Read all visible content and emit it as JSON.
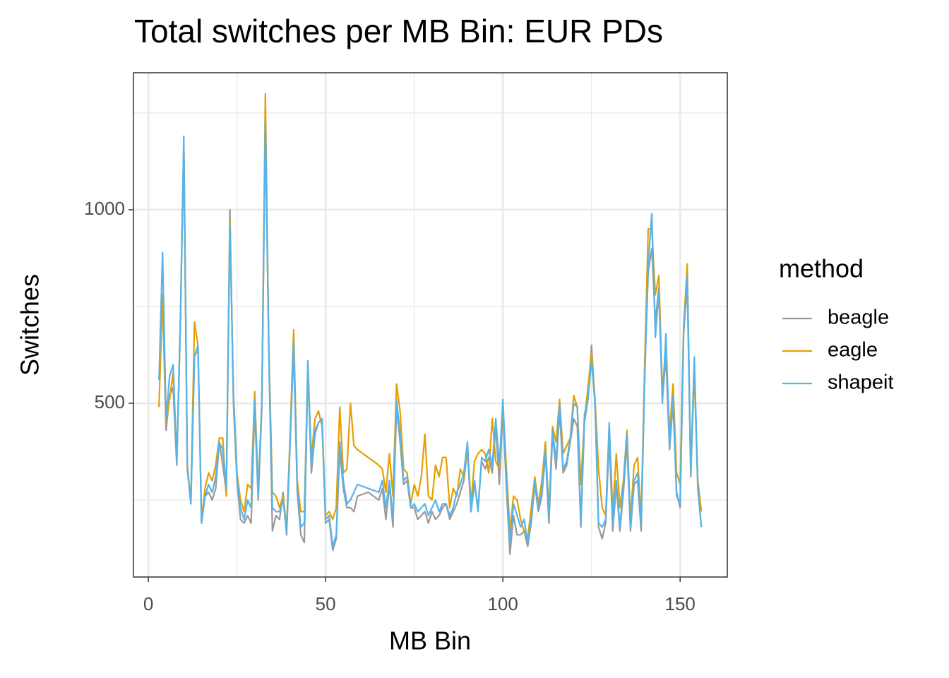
{
  "chart_data": {
    "type": "line",
    "title": "Total switches per MB Bin: EUR PDs",
    "x_label": "MB Bin",
    "y_label": "Switches",
    "legend_title": "method",
    "legend_position": "right",
    "grid": true,
    "xlim": [
      -4.2,
      163.3
    ],
    "xticks": [
      0,
      50,
      100,
      150
    ],
    "ylim": [
      51,
      1354
    ],
    "yticks": [
      500,
      1000
    ],
    "x": [
      3,
      4,
      5,
      6,
      7,
      8,
      9,
      10,
      11,
      12,
      13,
      14,
      15,
      16,
      17,
      18,
      19,
      20,
      21,
      22,
      23,
      24,
      25,
      26,
      27,
      28,
      29,
      30,
      31,
      32,
      33,
      34,
      35,
      36,
      37,
      38,
      39,
      40,
      41,
      42,
      43,
      44,
      45,
      46,
      47,
      48,
      49,
      50,
      51,
      52,
      53,
      54,
      55,
      56,
      57,
      58,
      59,
      62,
      65,
      66,
      67,
      68,
      69,
      70,
      71,
      72,
      73,
      74,
      75,
      76,
      77,
      78,
      79,
      80,
      81,
      82,
      83,
      84,
      85,
      86,
      87,
      88,
      89,
      90,
      91,
      92,
      93,
      94,
      95,
      96,
      97,
      98,
      99,
      100,
      101,
      102,
      103,
      104,
      105,
      106,
      107,
      108,
      109,
      110,
      111,
      112,
      113,
      114,
      115,
      116,
      117,
      118,
      119,
      120,
      121,
      122,
      123,
      124,
      125,
      126,
      127,
      128,
      129,
      130,
      131,
      132,
      133,
      134,
      135,
      136,
      137,
      138,
      139,
      140,
      141,
      142,
      143,
      144,
      145,
      146,
      147,
      148,
      149,
      150,
      151,
      152,
      153,
      154,
      155,
      156
    ],
    "series": [
      {
        "name": "beagle",
        "color": "#999999",
        "values": [
          560,
          770,
          430,
          520,
          540,
          340,
          690,
          1170,
          330,
          240,
          620,
          640,
          190,
          260,
          270,
          250,
          280,
          400,
          340,
          270,
          1000,
          500,
          300,
          200,
          190,
          210,
          190,
          490,
          250,
          490,
          1230,
          620,
          170,
          210,
          200,
          270,
          160,
          400,
          640,
          270,
          160,
          140,
          590,
          320,
          420,
          450,
          460,
          190,
          200,
          120,
          150,
          380,
          280,
          230,
          230,
          220,
          260,
          270,
          250,
          280,
          200,
          290,
          180,
          490,
          400,
          290,
          300,
          230,
          230,
          200,
          210,
          220,
          190,
          220,
          200,
          210,
          230,
          240,
          200,
          220,
          240,
          270,
          300,
          380,
          220,
          290,
          230,
          350,
          330,
          360,
          320,
          440,
          290,
          480,
          280,
          110,
          210,
          160,
          160,
          170,
          130,
          190,
          290,
          220,
          260,
          370,
          190,
          420,
          330,
          480,
          320,
          340,
          400,
          460,
          440,
          180,
          450,
          510,
          650,
          500,
          180,
          150,
          190,
          410,
          170,
          290,
          170,
          270,
          400,
          170,
          290,
          300,
          170,
          570,
          840,
          900,
          710,
          800,
          510,
          620,
          380,
          500,
          270,
          230,
          680,
          810,
          310,
          590,
          280,
          180
        ]
      },
      {
        "name": "eagle",
        "color": "#E69F00",
        "values": [
          490,
          780,
          450,
          510,
          580,
          350,
          700,
          1170,
          330,
          250,
          710,
          650,
          200,
          280,
          320,
          300,
          340,
          410,
          410,
          260,
          970,
          530,
          320,
          250,
          220,
          290,
          280,
          530,
          280,
          500,
          1300,
          640,
          270,
          260,
          230,
          260,
          180,
          420,
          690,
          300,
          220,
          220,
          590,
          360,
          460,
          480,
          440,
          210,
          220,
          200,
          230,
          490,
          320,
          330,
          500,
          390,
          380,
          360,
          340,
          330,
          270,
          370,
          260,
          550,
          480,
          330,
          320,
          240,
          290,
          260,
          310,
          420,
          260,
          250,
          340,
          310,
          360,
          360,
          230,
          280,
          260,
          330,
          310,
          390,
          240,
          350,
          370,
          380,
          370,
          320,
          460,
          350,
          330,
          500,
          330,
          170,
          260,
          250,
          200,
          170,
          150,
          230,
          310,
          240,
          300,
          400,
          220,
          440,
          400,
          510,
          370,
          390,
          410,
          520,
          490,
          290,
          460,
          540,
          630,
          510,
          330,
          230,
          210,
          440,
          220,
          370,
          230,
          300,
          430,
          200,
          340,
          360,
          200,
          600,
          950,
          950,
          780,
          830,
          530,
          650,
          420,
          550,
          320,
          290,
          700,
          860,
          330,
          580,
          300,
          220
        ]
      },
      {
        "name": "shapeit",
        "color": "#56B4E9",
        "values": [
          560,
          890,
          460,
          570,
          600,
          350,
          700,
          1190,
          340,
          240,
          620,
          650,
          190,
          260,
          290,
          270,
          310,
          400,
          380,
          280,
          960,
          520,
          310,
          230,
          200,
          250,
          230,
          510,
          260,
          490,
          1230,
          620,
          230,
          220,
          220,
          250,
          170,
          400,
          660,
          280,
          180,
          190,
          610,
          340,
          430,
          450,
          460,
          200,
          210,
          130,
          160,
          400,
          300,
          240,
          250,
          270,
          290,
          280,
          270,
          300,
          230,
          300,
          200,
          510,
          420,
          300,
          310,
          230,
          240,
          220,
          230,
          240,
          210,
          230,
          250,
          220,
          240,
          240,
          210,
          230,
          270,
          290,
          320,
          400,
          220,
          300,
          220,
          360,
          350,
          380,
          340,
          460,
          340,
          510,
          300,
          140,
          240,
          210,
          180,
          200,
          140,
          200,
          300,
          230,
          270,
          380,
          210,
          430,
          350,
          500,
          330,
          350,
          410,
          500,
          490,
          190,
          470,
          510,
          610,
          500,
          190,
          180,
          200,
          450,
          190,
          300,
          180,
          290,
          420,
          180,
          300,
          320,
          190,
          560,
          860,
          990,
          670,
          790,
          500,
          680,
          390,
          520,
          260,
          240,
          690,
          830,
          320,
          620,
          280,
          180
        ]
      }
    ]
  }
}
